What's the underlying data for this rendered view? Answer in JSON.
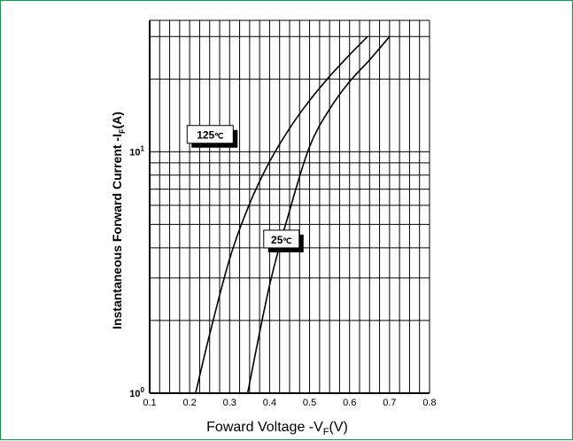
{
  "chart_data": {
    "type": "line",
    "title": "",
    "xlabel": {
      "main": "Foward Voltage -V",
      "sub": "F",
      "suffix": "(V)"
    },
    "ylabel": {
      "prefix": "Instantaneous Forward Current -I",
      "sub": "F",
      "suffix": "(A)"
    },
    "xlim": [
      0.1,
      0.8
    ],
    "ylim": [
      1,
      35
    ],
    "y_scale": "log",
    "grid": true,
    "x_ticks": [
      "0.1",
      "0.2",
      "0.3",
      "0.4",
      "0.5",
      "0.6",
      "0.7",
      "0.8"
    ],
    "y_ticks": [
      {
        "base": "10",
        "exp": "0",
        "value": 1
      },
      {
        "base": "10",
        "exp": "1",
        "value": 10
      }
    ],
    "series": [
      {
        "name": "125℃",
        "label_base": "125",
        "label_unit": "℃",
        "x": [
          0.215,
          0.25,
          0.3,
          0.35,
          0.4,
          0.45,
          0.5,
          0.55,
          0.6,
          0.645
        ],
        "y": [
          1.0,
          1.75,
          3.6,
          6.1,
          9.1,
          12.5,
          16.3,
          20.5,
          25.2,
          30.0
        ]
      },
      {
        "name": "25℃",
        "label_base": "25",
        "label_unit": "℃",
        "x": [
          0.345,
          0.4,
          0.45,
          0.5,
          0.55,
          0.6,
          0.65,
          0.7
        ],
        "y": [
          1.0,
          2.8,
          5.7,
          10.5,
          15.0,
          19.5,
          24.0,
          30.0
        ]
      }
    ]
  }
}
